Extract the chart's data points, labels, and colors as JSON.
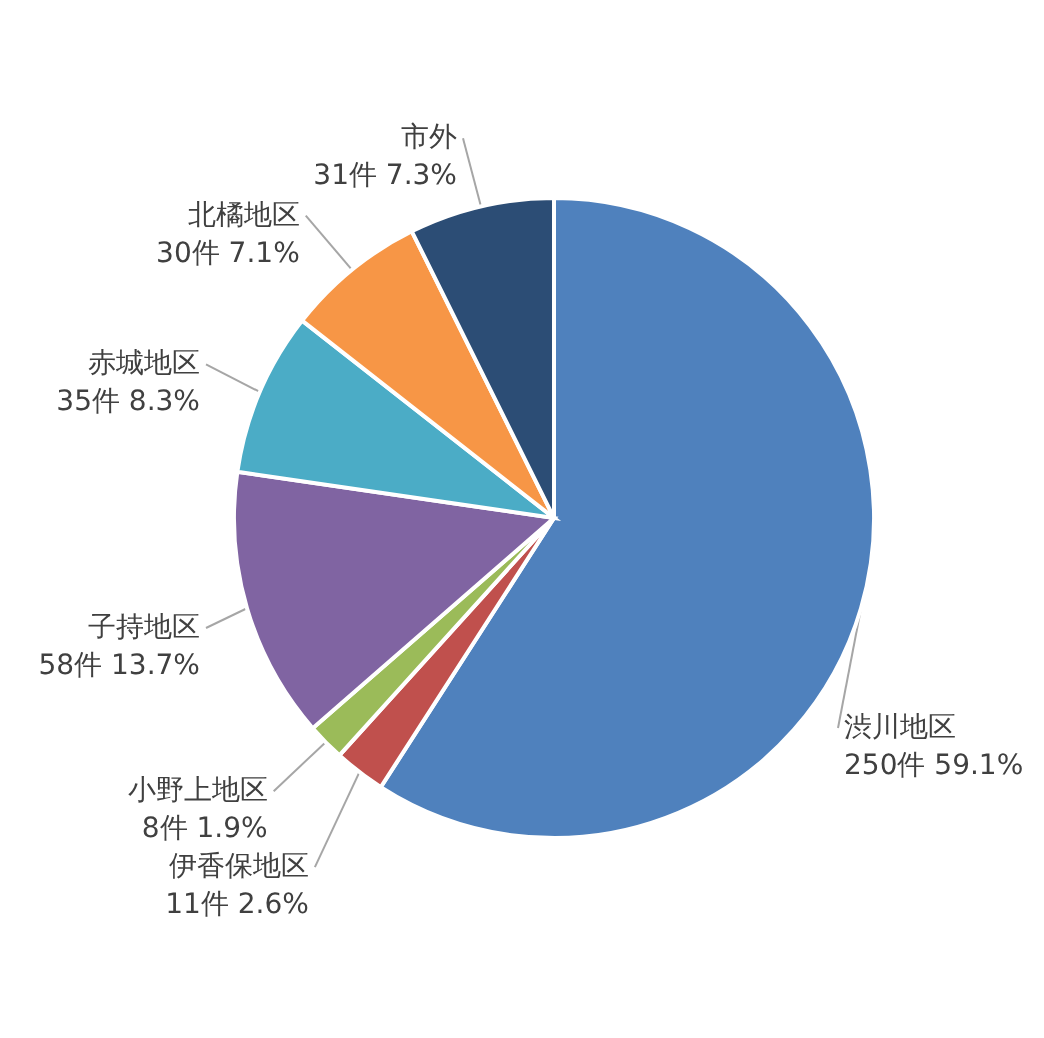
{
  "chart_data": {
    "type": "pie",
    "categories": [
      "渋川地区",
      "伊香保地区",
      "小野上地区",
      "子持地区",
      "赤城地区",
      "北橘地区",
      "市外"
    ],
    "values": [
      250,
      11,
      8,
      58,
      35,
      30,
      31
    ],
    "value_labels": [
      "250件 59.1%",
      "11件 2.6%",
      "8件 1.9%",
      "58件 13.7%",
      "35件 8.3%",
      "30件 7.1%",
      "31件 7.3%"
    ],
    "colors": [
      "#4f81bd",
      "#c0504d",
      "#9bbb59",
      "#8064a2",
      "#4bacc6",
      "#f79646",
      "#2c4d75"
    ]
  }
}
